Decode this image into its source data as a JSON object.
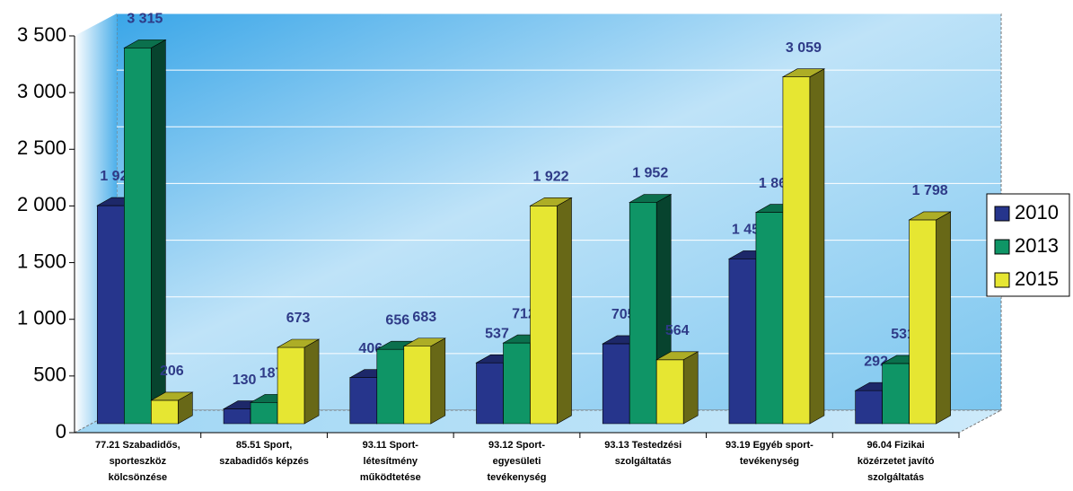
{
  "chart_data": {
    "type": "bar3d",
    "categories": [
      [
        "77.21 Szabadidős,",
        "sporteszköz",
        "kölcsönzése"
      ],
      [
        "85.51 Sport,",
        "szabadidős képzés"
      ],
      [
        "93.11 Sport-",
        "létesítmény",
        "működtetése"
      ],
      [
        "93.12 Sport-",
        "egyesületi",
        "tevékenység"
      ],
      [
        "93.13 Testedzési",
        "szolgáltatás"
      ],
      [
        "93.19 Egyéb sport-",
        "tevékenység"
      ],
      [
        "96.04 Fizikai",
        "közérzetet javító",
        "szolgáltatás"
      ]
    ],
    "series": [
      {
        "name": "2010",
        "color": "#26358c",
        "values": [
          1924,
          130,
          406,
          537,
          705,
          1454,
          292
        ],
        "value_labels": [
          "1 924",
          "130",
          "406",
          "537",
          "705",
          "1 454",
          "292"
        ]
      },
      {
        "name": "2013",
        "color": "#0f9566",
        "values": [
          3315,
          187,
          656,
          712,
          1952,
          1864,
          531
        ],
        "value_labels": [
          "3 315",
          "187",
          "656",
          "712",
          "1 952",
          "1 864",
          "531"
        ]
      },
      {
        "name": "2015",
        "color": "#e6e632",
        "values": [
          206,
          673,
          683,
          1922,
          564,
          3059,
          1798
        ],
        "value_labels": [
          "206",
          "673",
          "683",
          "1 922",
          "564",
          "3 059",
          "1 798"
        ]
      }
    ],
    "ylim": [
      0,
      3500
    ],
    "yticks": [
      0,
      500,
      {
        "value": 1000,
        "label": "1 000"
      },
      {
        "value": 1500,
        "label": "1 500"
      },
      {
        "value": 2000,
        "label": "2 000"
      },
      {
        "value": 2500,
        "label": "2 500"
      },
      {
        "value": 3000,
        "label": "3 000"
      },
      {
        "value": 3500,
        "label": "3 500"
      }
    ],
    "grid": true,
    "legend": "right"
  }
}
